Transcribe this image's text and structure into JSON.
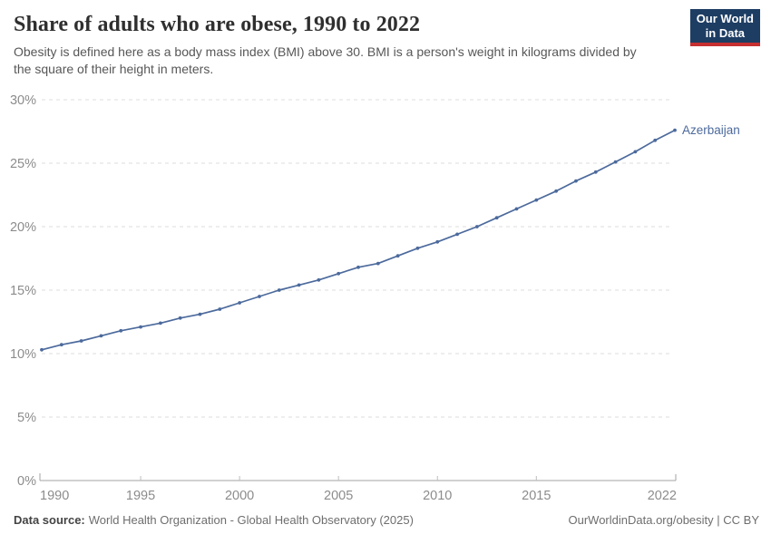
{
  "header": {
    "title": "Share of adults who are obese, 1990 to 2022",
    "subtitle_line1": "Obesity is defined here as a body mass index (BMI) above 30. BMI is a person's weight in kilograms divided by",
    "subtitle_line2": "the square of their height in meters."
  },
  "logo": {
    "line1": "Our World",
    "line2": "in Data",
    "bg_color": "#1d3d63",
    "underline_color": "#c62f30"
  },
  "footer": {
    "datasource_label": "Data source:",
    "datasource_text": "World Health Organization - Global Health Observatory (2025)",
    "right_text": "OurWorldinData.org/obesity | CC BY"
  },
  "chart_data": {
    "type": "line",
    "title": "Share of adults who are obese, 1990 to 2022",
    "entity_label": "Azerbaijan",
    "xlabel": "",
    "ylabel": "",
    "x": [
      1990,
      1991,
      1992,
      1993,
      1994,
      1995,
      1996,
      1997,
      1998,
      1999,
      2000,
      2001,
      2002,
      2003,
      2004,
      2005,
      2006,
      2007,
      2008,
      2009,
      2010,
      2011,
      2012,
      2013,
      2014,
      2015,
      2016,
      2017,
      2018,
      2019,
      2020,
      2021,
      2022
    ],
    "values": [
      10.3,
      10.7,
      11.0,
      11.4,
      11.8,
      12.1,
      12.4,
      12.8,
      13.1,
      13.5,
      14.0,
      14.5,
      15.0,
      15.4,
      15.8,
      16.3,
      16.8,
      17.1,
      17.7,
      18.3,
      18.8,
      19.4,
      20.0,
      20.7,
      21.4,
      22.1,
      22.8,
      23.6,
      24.3,
      25.1,
      25.9,
      26.8,
      27.6
    ],
    "ylim": [
      0,
      30
    ],
    "yticks": [
      0,
      5,
      10,
      15,
      20,
      25,
      30
    ],
    "ytick_suffix": "%",
    "xticks": [
      1990,
      1995,
      2000,
      2005,
      2010,
      2015,
      2022
    ],
    "grid": true,
    "legend_position": "end-of-line label",
    "line_color": "#4c6a9c",
    "gridline_color": "#dddddd",
    "axis_color": "#a3a3a3",
    "tick_label_color": "#8c8c8c"
  }
}
